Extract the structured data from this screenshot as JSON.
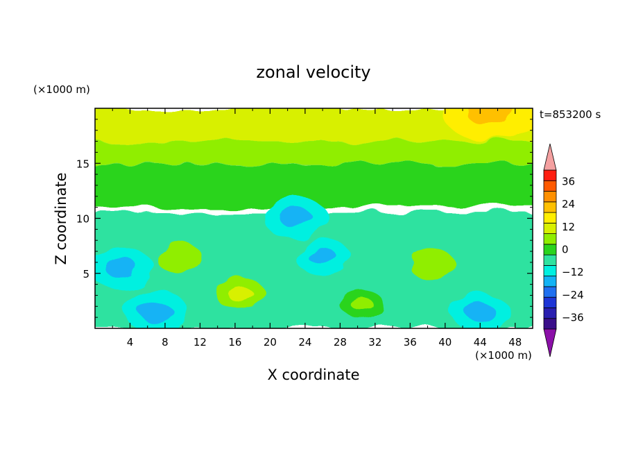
{
  "chart_data": {
    "type": "heatmap",
    "title": "zonal velocity",
    "xlabel": "X coordinate",
    "ylabel": "Z coordinate",
    "x_unit": "(×1000 m)",
    "y_unit": "(×1000 m)",
    "time_label": "t=853200 s",
    "xlim": [
      0,
      50
    ],
    "ylim": [
      0,
      20
    ],
    "x_ticks": [
      4,
      8,
      12,
      16,
      20,
      24,
      28,
      32,
      36,
      40,
      44,
      48
    ],
    "y_ticks": [
      5,
      10,
      15
    ],
    "colorbar": {
      "levels": [
        -42,
        -36,
        -30,
        -24,
        -18,
        -12,
        -6,
        0,
        6,
        12,
        18,
        24,
        30,
        36,
        42
      ],
      "tick_values": [
        36,
        24,
        12,
        0,
        -12,
        -24,
        -36
      ],
      "tick_labels": [
        "36",
        "24",
        "12",
        "0",
        "−12",
        "−24",
        "−36"
      ],
      "colors": [
        "#3a0f8a",
        "#2a1fb0",
        "#1e35d6",
        "#1f70f0",
        "#12b3f5",
        "#00f0e0",
        "#2fe2a0",
        "#2ad41e",
        "#90ee00",
        "#d8f000",
        "#ffee00",
        "#ffc000",
        "#ff9000",
        "#ff5a00",
        "#ff1e10"
      ],
      "over_color": "#f4a0a0",
      "under_color": "#8b10a8"
    },
    "features": [
      {
        "kind": "layer",
        "z_range": [
          17,
          20
        ],
        "value": 16
      },
      {
        "kind": "layer",
        "z_range": [
          15,
          17
        ],
        "value": 9
      },
      {
        "kind": "layer",
        "z_range": [
          11,
          15
        ],
        "value": 3
      },
      {
        "kind": "layer",
        "z_range": [
          0,
          10.5
        ],
        "value": -4
      },
      {
        "kind": "blob",
        "x": 9.5,
        "z": 6.5,
        "value": 6
      },
      {
        "kind": "blob",
        "x": 16.5,
        "z": 3.2,
        "value": 7
      },
      {
        "kind": "blob",
        "x": 38.5,
        "z": 5.8,
        "value": 6
      },
      {
        "kind": "blob",
        "x": 3,
        "z": 5.5,
        "value": -12
      },
      {
        "kind": "blob",
        "x": 7,
        "z": 1.5,
        "value": -12
      },
      {
        "kind": "blob",
        "x": 26,
        "z": 6.5,
        "value": -9
      },
      {
        "kind": "blob",
        "x": 44,
        "z": 1.5,
        "value": -10
      },
      {
        "kind": "blob",
        "x": 30.5,
        "z": 2.2,
        "value": 5
      },
      {
        "kind": "blob",
        "x": 23,
        "z": 10,
        "value": -12
      },
      {
        "kind": "blob",
        "x": 45,
        "z": 19.8,
        "value": 22
      }
    ]
  }
}
